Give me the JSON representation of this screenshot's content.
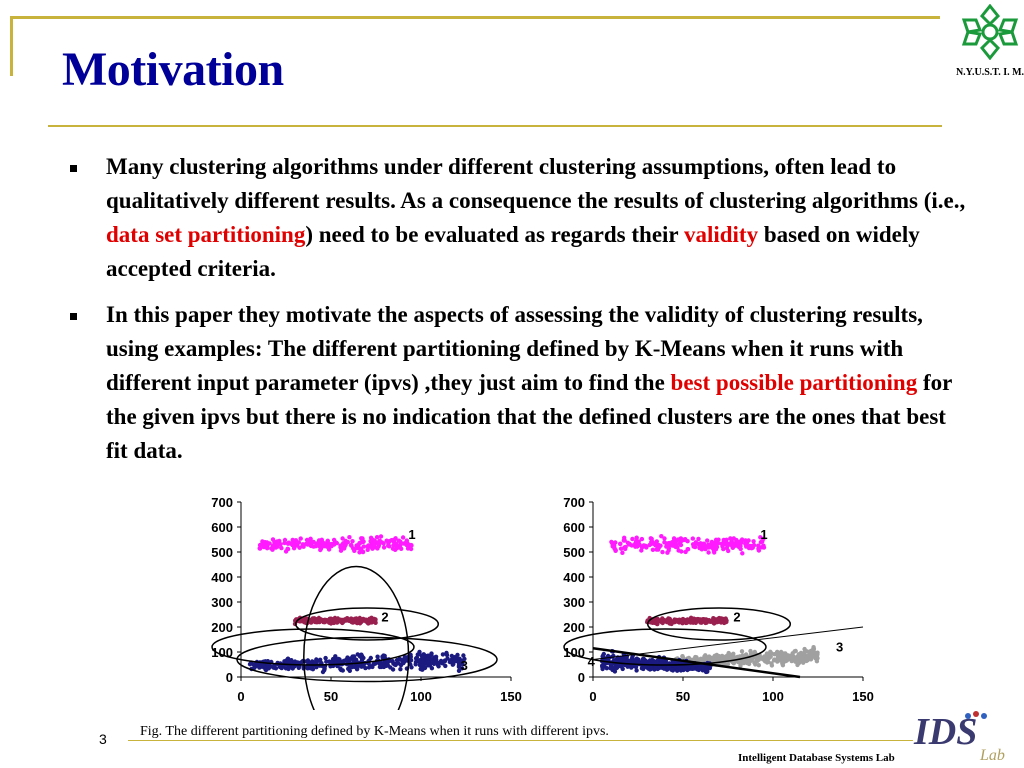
{
  "slide": {
    "title": "Motivation",
    "number": "3",
    "logo_caption": "N.Y.U.S.T. I. M.",
    "footer_lab": "Intelligent Database Systems Lab",
    "ids_logo_text": "IDS",
    "ids_logo_sub": "Lab"
  },
  "bullets": [
    {
      "parts": [
        {
          "text": "Many clustering algorithms under different clustering assumptions, often lead to qualitatively different results. As a consequence the results of clustering algorithms  (i.e., ",
          "hl": false
        },
        {
          "text": "data set partitioning",
          "hl": true
        },
        {
          "text": ") need to be evaluated as regards their ",
          "hl": false
        },
        {
          "text": "validity",
          "hl": true
        },
        {
          "text": " based on widely accepted criteria.",
          "hl": false
        }
      ]
    },
    {
      "parts": [
        {
          "text": "In this paper they motivate the aspects of assessing the validity of clustering results, using examples: The different partitioning defined by K-Means when it runs with different input parameter (ipvs) ,they just aim to find the ",
          "hl": false
        },
        {
          "text": "best possible partitioning",
          "hl": true
        },
        {
          "text": " for the given ipvs but there is no indication that the defined clusters are the ones that best fit data.",
          "hl": false
        }
      ]
    }
  ],
  "figure_caption": "Fig. The different partitioning defined by K-Means when it runs with different ipvs.",
  "colors": {
    "title": "#000099",
    "rule": "#c8b43c",
    "highlight": "#e00000",
    "cluster_magenta": "#ff1aff",
    "cluster_maroon": "#99204f",
    "cluster_navy": "#1a1a80",
    "cluster_gray": "#a0a0a0",
    "logo_green": "#1a9a3a"
  },
  "chart_data": [
    {
      "type": "scatter",
      "xlim": [
        0,
        150
      ],
      "ylim": [
        0,
        700
      ],
      "x_ticks": [
        "0",
        "50",
        "100",
        "150"
      ],
      "y_ticks": [
        "0",
        "100",
        "200",
        "300",
        "400",
        "500",
        "600",
        "700"
      ],
      "series": [
        {
          "name": "1",
          "color": "#ff1aff",
          "x_range": [
            10,
            95
          ],
          "y_range": [
            490,
            570
          ]
        },
        {
          "name": "2",
          "color": "#99204f",
          "x_range": [
            30,
            75
          ],
          "y_range": [
            210,
            240
          ]
        },
        {
          "name": "3",
          "color": "#1a1a80",
          "x_range": [
            5,
            125
          ],
          "y_range": [
            15,
            120
          ]
        }
      ],
      "annotations": [
        "1",
        "2",
        "3"
      ]
    },
    {
      "type": "scatter",
      "xlim": [
        0,
        150
      ],
      "ylim": [
        0,
        700
      ],
      "x_ticks": [
        "0",
        "50",
        "100",
        "150"
      ],
      "y_ticks": [
        "0",
        "100",
        "200",
        "300",
        "400",
        "500",
        "600",
        "700"
      ],
      "series": [
        {
          "name": "1",
          "color": "#ff1aff",
          "x_range": [
            10,
            95
          ],
          "y_range": [
            490,
            570
          ]
        },
        {
          "name": "2",
          "color": "#99204f",
          "x_range": [
            30,
            75
          ],
          "y_range": [
            210,
            240
          ]
        },
        {
          "name": "3",
          "color": "#a0a0a0",
          "x_range": [
            45,
            125
          ],
          "y_range": [
            40,
            130
          ]
        },
        {
          "name": "4",
          "color": "#1a1a80",
          "x_range": [
            5,
            65
          ],
          "y_range": [
            15,
            110
          ]
        }
      ],
      "annotations": [
        "1",
        "2",
        "3",
        "4"
      ]
    }
  ]
}
